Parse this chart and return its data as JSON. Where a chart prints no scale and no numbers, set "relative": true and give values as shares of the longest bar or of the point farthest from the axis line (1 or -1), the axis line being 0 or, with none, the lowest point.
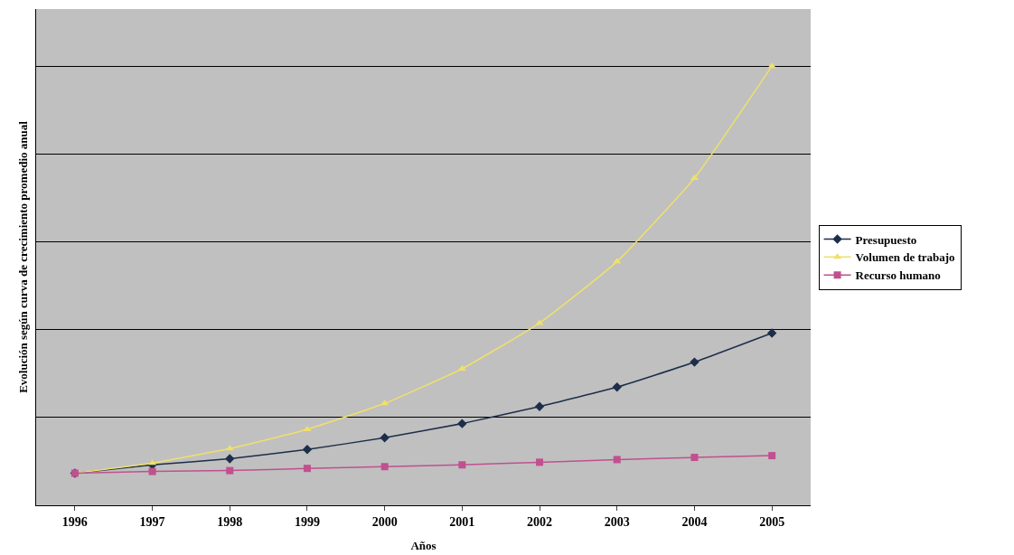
{
  "chart_data": {
    "type": "line",
    "relative": true,
    "xlabel": "Años",
    "ylabel": "Evolución según curva de crecimiento promedio anual",
    "categories": [
      "1996",
      "1997",
      "1998",
      "1999",
      "2000",
      "2001",
      "2002",
      "2003",
      "2004",
      "2005"
    ],
    "series": [
      {
        "name": "Presupuesto",
        "color": "#1c2e4a",
        "marker": "diamond",
        "values": [
          0.073,
          0.092,
          0.106,
          0.127,
          0.154,
          0.186,
          0.225,
          0.269,
          0.326,
          0.392
        ]
      },
      {
        "name": "Volumen de trabajo",
        "color": "#f0e06a",
        "marker": "triangle",
        "values": [
          0.073,
          0.096,
          0.129,
          0.173,
          0.232,
          0.311,
          0.415,
          0.555,
          0.745,
          1
        ]
      },
      {
        "name": "Recurso humano",
        "color": "#c0508f",
        "marker": "square",
        "values": [
          0.073,
          0.077,
          0.079,
          0.084,
          0.088,
          0.092,
          0.098,
          0.104,
          0.109,
          0.113
        ]
      }
    ],
    "grid": "y",
    "legend": "right",
    "line_style": "solid"
  }
}
